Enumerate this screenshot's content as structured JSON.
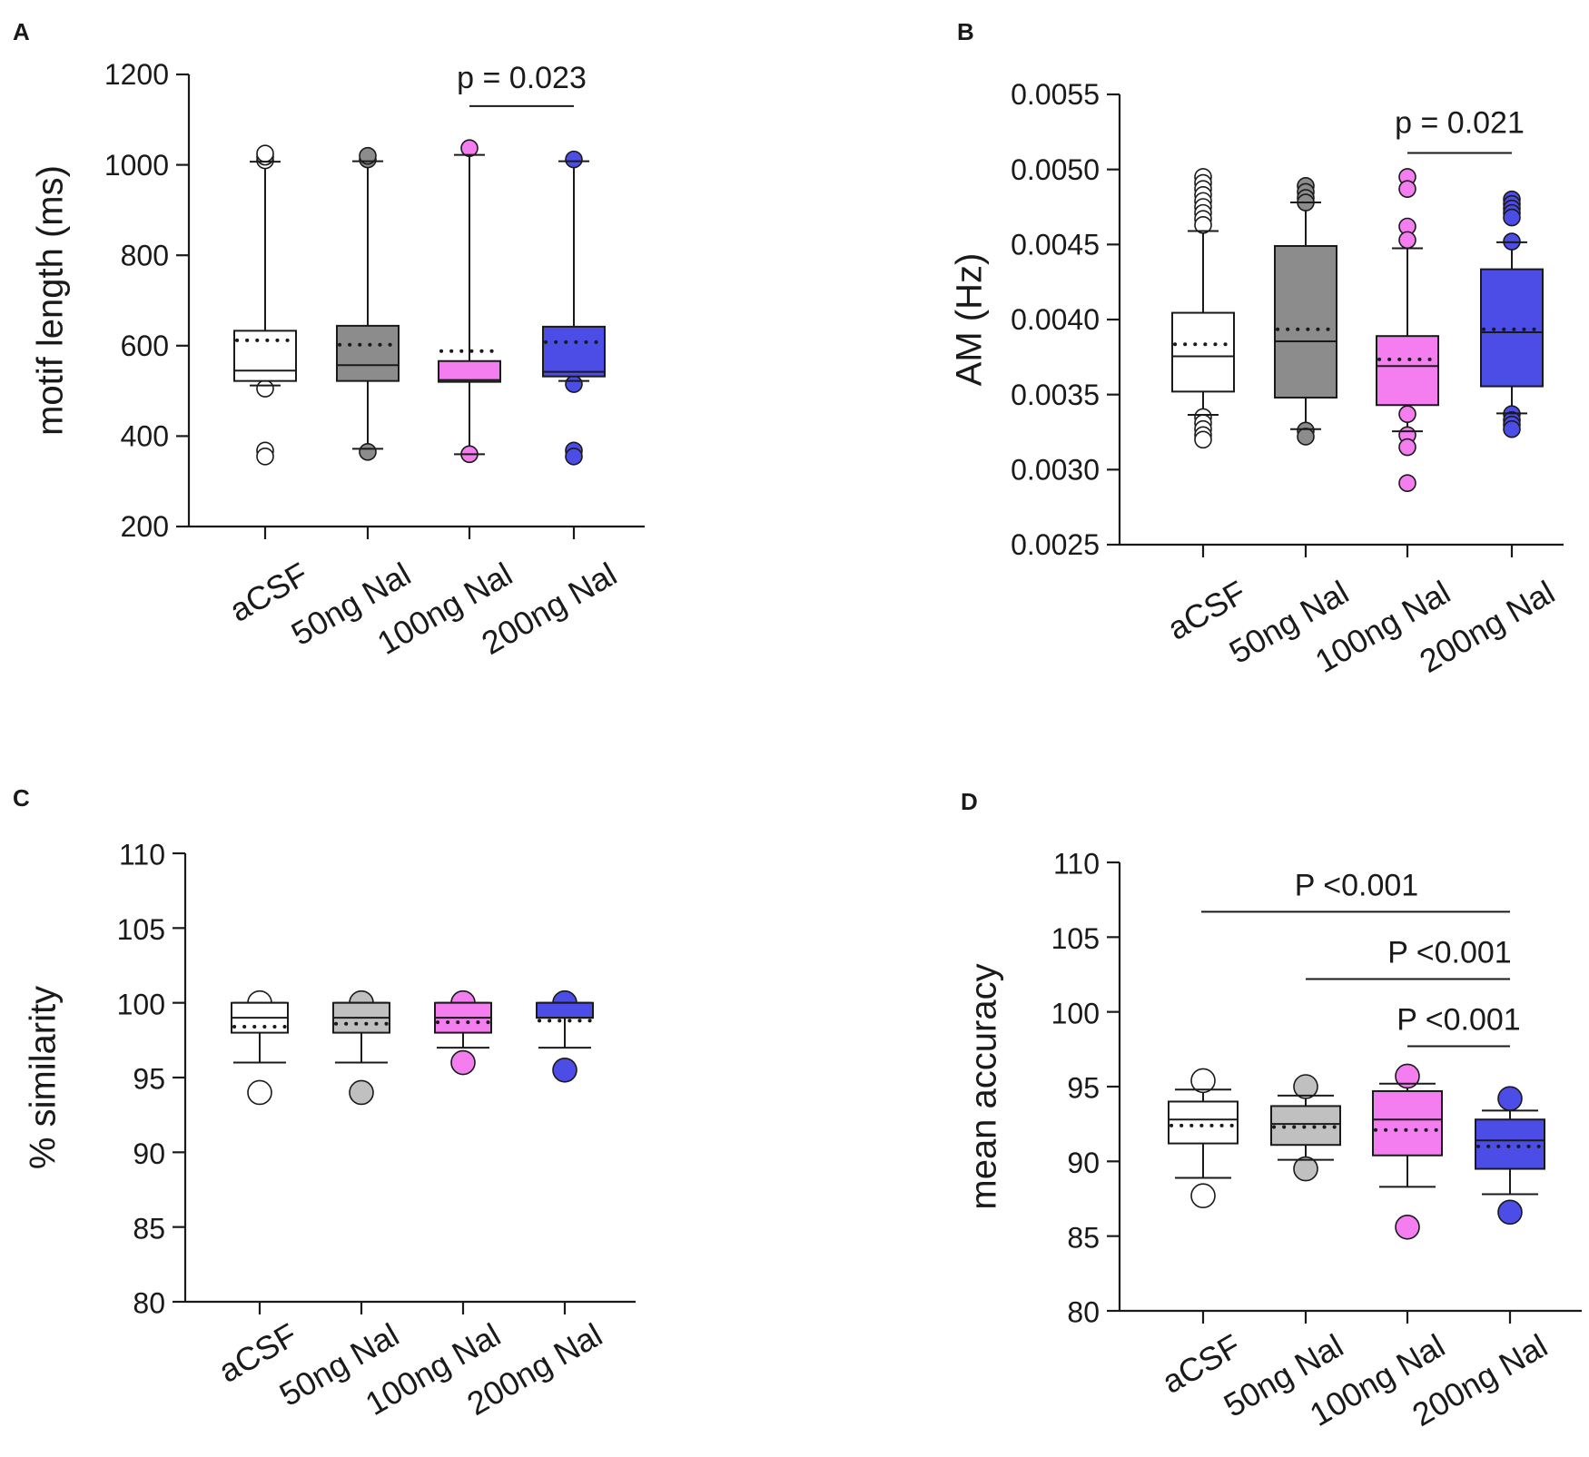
{
  "figure": {
    "colors": {
      "aCSF": "#ffffff",
      "50ng": "#8c8c8c",
      "50ng_light": "#c0c0c0",
      "100ng": "#f47ef0",
      "200ng": "#4b4de6",
      "axis": "#1a1a1a"
    }
  },
  "chart_data": [
    {
      "panel": "A",
      "type": "box",
      "ylabel": "motif length (ms)",
      "ylim": [
        200,
        1200
      ],
      "yticks": [
        200,
        400,
        600,
        800,
        1000,
        1200
      ],
      "tick_labels": [
        "200",
        "400",
        "600",
        "800",
        "1000",
        "1200"
      ],
      "categories": [
        "aCSF",
        "50ng Nal",
        "100ng Nal",
        "200ng Nal"
      ],
      "fill_keys": [
        "aCSF",
        "50ng",
        "100ng",
        "200ng"
      ],
      "boxes": [
        {
          "q1": 522,
          "median": 545,
          "q3": 633,
          "mean": 612,
          "whisker_low": 512,
          "whisker_high": 1007,
          "outliers": [
            1010,
            1018,
            1025,
            505,
            368,
            355
          ]
        },
        {
          "q1": 522,
          "median": 557,
          "q3": 644,
          "mean": 602,
          "whisker_low": 372,
          "whisker_high": 1008,
          "outliers": [
            1012,
            1020,
            365
          ]
        },
        {
          "q1": 520,
          "median": 524,
          "q3": 566,
          "mean": 588,
          "whisker_low": 360,
          "whisker_high": 1022,
          "outliers": [
            1037,
            360
          ]
        },
        {
          "q1": 532,
          "median": 542,
          "q3": 642,
          "mean": 608,
          "whisker_low": 522,
          "whisker_high": 1008,
          "outliers": [
            1012,
            515,
            368,
            355
          ]
        }
      ],
      "comparisons": [
        {
          "from": 2,
          "to": 3,
          "level": 1130,
          "label": "p = 0.023"
        }
      ]
    },
    {
      "panel": "B",
      "type": "box",
      "ylabel": "AM (Hz)",
      "ylim": [
        0.0025,
        0.0055
      ],
      "yticks": [
        0.0025,
        0.003,
        0.0035,
        0.004,
        0.0045,
        0.005,
        0.0055
      ],
      "tick_labels": [
        "0.0025",
        "0.0030",
        "0.0035",
        "0.0040",
        "0.0045",
        "0.0050",
        "0.0055"
      ],
      "categories": [
        "aCSF",
        "50ng Nal",
        "100ng Nal",
        "200ng Nal"
      ],
      "fill_keys": [
        "aCSF",
        "50ng",
        "100ng",
        "200ng"
      ],
      "boxes": [
        {
          "q1": 0.00352,
          "median": 0.003755,
          "q3": 0.004045,
          "mean": 0.003835,
          "whisker_low": 0.003365,
          "whisker_high": 0.00459,
          "outliers": [
            0.00495,
            0.00491,
            0.00487,
            0.00483,
            0.00479,
            0.00475,
            0.00471,
            0.00467,
            0.00463,
            0.00335,
            0.00331,
            0.00327,
            0.00323,
            0.0032
          ]
        },
        {
          "q1": 0.00348,
          "median": 0.003855,
          "q3": 0.00449,
          "mean": 0.003935,
          "whisker_low": 0.00327,
          "whisker_high": 0.00478,
          "outliers": [
            0.00489,
            0.00485,
            0.00481,
            0.00478,
            0.00326,
            0.00322
          ]
        },
        {
          "q1": 0.00343,
          "median": 0.00369,
          "q3": 0.00389,
          "mean": 0.003735,
          "whisker_low": 0.003255,
          "whisker_high": 0.004475,
          "outliers": [
            0.00495,
            0.00487,
            0.00462,
            0.00453,
            0.00337,
            0.00323,
            0.00315,
            0.00291
          ]
        },
        {
          "q1": 0.003555,
          "median": 0.003915,
          "q3": 0.004335,
          "mean": 0.003935,
          "whisker_low": 0.003375,
          "whisker_high": 0.004515,
          "outliers": [
            0.0048,
            0.00477,
            0.00474,
            0.00471,
            0.00468,
            0.00452,
            0.00337,
            0.00333,
            0.0033,
            0.00327
          ]
        }
      ],
      "comparisons": [
        {
          "from": 2,
          "to": 3,
          "level": 0.00511,
          "label": "p = 0.021"
        }
      ]
    },
    {
      "panel": "C",
      "type": "box",
      "ylabel": "% similarity",
      "ylim": [
        80,
        110
      ],
      "yticks": [
        80,
        85,
        90,
        95,
        100,
        105,
        110
      ],
      "tick_labels": [
        "80",
        "85",
        "90",
        "95",
        "100",
        "105",
        "110"
      ],
      "categories": [
        "aCSF",
        "50ng Nal",
        "100ng Nal",
        "200ng Nal"
      ],
      "fill_keys": [
        "aCSF",
        "50ng_light",
        "100ng",
        "200ng"
      ],
      "boxes": [
        {
          "q1": 98.0,
          "median": 99.0,
          "q3": 100,
          "mean": 98.4,
          "whisker_low": 96.0,
          "whisker_high": 100,
          "outliers": [
            100,
            94.0
          ]
        },
        {
          "q1": 98.0,
          "median": 99.0,
          "q3": 100,
          "mean": 98.6,
          "whisker_low": 96.0,
          "whisker_high": 100,
          "outliers": [
            100,
            94.0
          ]
        },
        {
          "q1": 98.0,
          "median": 99.0,
          "q3": 100,
          "mean": 98.7,
          "whisker_low": 97.0,
          "whisker_high": 100,
          "outliers": [
            100,
            96.0
          ]
        },
        {
          "q1": 99.0,
          "median": 99.0,
          "q3": 100,
          "mean": 98.8,
          "whisker_low": 97.0,
          "whisker_high": 100,
          "outliers": [
            100,
            95.5
          ]
        }
      ],
      "comparisons": []
    },
    {
      "panel": "D",
      "type": "box",
      "ylabel": "mean accuracy",
      "ylim": [
        80,
        110
      ],
      "yticks": [
        80,
        85,
        90,
        95,
        100,
        105,
        110
      ],
      "tick_labels": [
        "80",
        "85",
        "90",
        "95",
        "100",
        "105",
        "110"
      ],
      "categories": [
        "aCSF",
        "50ng Nal",
        "100ng Nal",
        "200ng Nal"
      ],
      "fill_keys": [
        "aCSF",
        "50ng_light",
        "100ng",
        "200ng"
      ],
      "boxes": [
        {
          "q1": 91.2,
          "median": 92.8,
          "q3": 94.0,
          "mean": 92.4,
          "whisker_low": 88.9,
          "whisker_high": 94.8,
          "outliers": [
            95.4,
            87.7
          ]
        },
        {
          "q1": 91.1,
          "median": 92.5,
          "q3": 93.7,
          "mean": 92.3,
          "whisker_low": 90.1,
          "whisker_high": 94.4,
          "outliers": [
            95.0,
            89.5
          ]
        },
        {
          "q1": 90.4,
          "median": 92.8,
          "q3": 94.7,
          "mean": 92.1,
          "whisker_low": 88.3,
          "whisker_high": 95.2,
          "outliers": [
            95.7,
            85.6
          ]
        },
        {
          "q1": 89.5,
          "median": 91.4,
          "q3": 92.8,
          "mean": 91.0,
          "whisker_low": 87.8,
          "whisker_high": 93.4,
          "outliers": [
            94.2,
            86.6
          ]
        }
      ],
      "comparisons": [
        {
          "from": 0,
          "to": 3,
          "level": 106.7,
          "label": "P <0.001"
        },
        {
          "from": 1,
          "to": 3,
          "level": 102.2,
          "label": "P <0.001"
        },
        {
          "from": 2,
          "to": 3,
          "level": 97.7,
          "label": "P <0.001"
        }
      ]
    }
  ]
}
